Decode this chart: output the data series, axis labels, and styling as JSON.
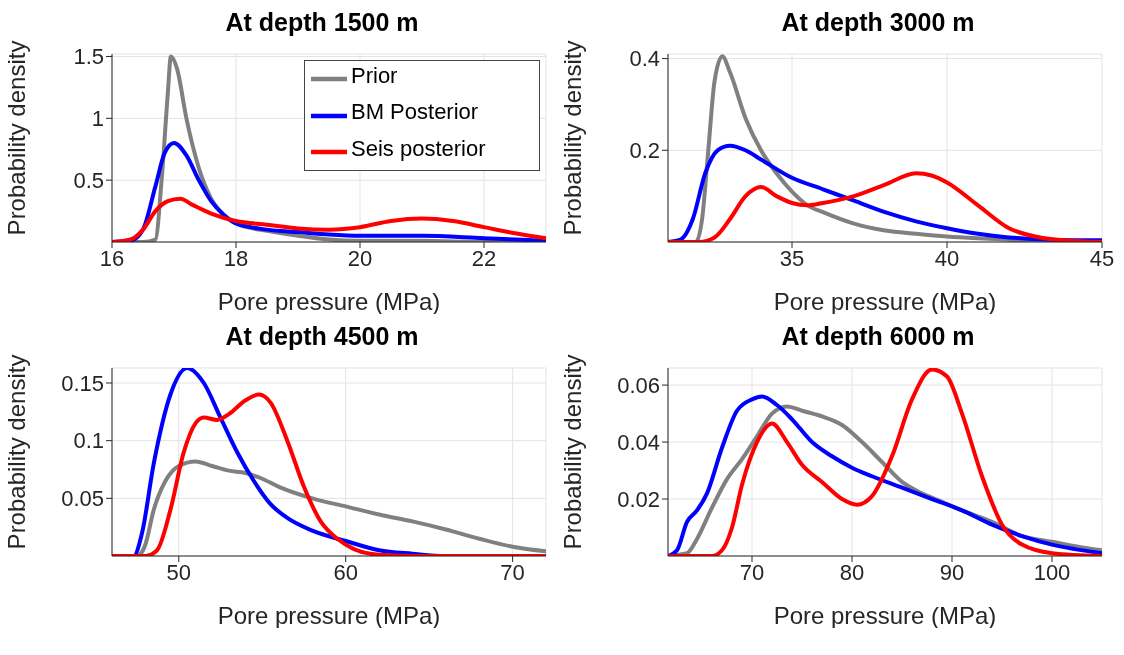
{
  "chart_data": [
    {
      "type": "line",
      "title": "At depth 1500 m",
      "xlabel": "Pore pressure (MPa)",
      "ylabel": "Probability density",
      "xlim": [
        16,
        23
      ],
      "xticks": [
        16,
        18,
        20,
        22
      ],
      "ylim": [
        0,
        1.52
      ],
      "yticks": [
        0.5,
        1,
        1.5
      ],
      "grid": true,
      "legend": "top right",
      "series": [
        {
          "name": "Prior",
          "color": "#808080",
          "x": [
            16,
            16.5,
            16.7,
            16.8,
            16.9,
            16.95,
            17.05,
            17.2,
            17.4,
            17.6,
            17.8,
            18,
            18.5,
            19,
            19.5,
            20,
            21,
            22,
            23
          ],
          "values": [
            0,
            0,
            0.02,
            0.5,
            1.2,
            1.5,
            1.4,
            1.0,
            0.6,
            0.35,
            0.22,
            0.15,
            0.09,
            0.05,
            0.02,
            0.01,
            0.01,
            0,
            0
          ]
        },
        {
          "name": "BM Posterior",
          "color": "#0000ff",
          "x": [
            16,
            16.3,
            16.5,
            16.7,
            16.85,
            17,
            17.2,
            17.4,
            17.6,
            17.8,
            18,
            18.5,
            19,
            19.5,
            20,
            21,
            22,
            23
          ],
          "values": [
            0,
            0.01,
            0.1,
            0.45,
            0.72,
            0.8,
            0.7,
            0.5,
            0.33,
            0.22,
            0.15,
            0.1,
            0.08,
            0.06,
            0.05,
            0.05,
            0.03,
            0.01
          ]
        },
        {
          "name": "Seis posterior",
          "color": "#ff0000",
          "x": [
            16,
            16.3,
            16.5,
            16.7,
            16.9,
            17.1,
            17.3,
            17.6,
            18,
            18.5,
            19,
            19.5,
            20,
            20.5,
            21,
            21.5,
            22,
            22.5,
            23
          ],
          "values": [
            0,
            0.02,
            0.1,
            0.25,
            0.33,
            0.35,
            0.3,
            0.23,
            0.17,
            0.14,
            0.11,
            0.1,
            0.12,
            0.17,
            0.19,
            0.17,
            0.12,
            0.07,
            0.03
          ]
        }
      ]
    },
    {
      "type": "line",
      "title": "At depth 3000 m",
      "xlabel": "Pore pressure (MPa)",
      "ylabel": "Probability density",
      "xlim": [
        31,
        45
      ],
      "xticks": [
        35,
        40,
        45
      ],
      "ylim": [
        0,
        0.41
      ],
      "yticks": [
        0.2,
        0.4
      ],
      "grid": true,
      "series": [
        {
          "color": "#808080",
          "x": [
            31,
            31.9,
            32.1,
            32.3,
            32.5,
            32.75,
            33,
            33.5,
            34,
            34.5,
            35,
            35.5,
            36,
            37,
            38,
            39,
            40,
            41,
            42,
            43,
            45
          ],
          "values": [
            0,
            0,
            0.05,
            0.2,
            0.35,
            0.405,
            0.37,
            0.27,
            0.2,
            0.15,
            0.11,
            0.08,
            0.065,
            0.04,
            0.025,
            0.018,
            0.012,
            0.008,
            0.005,
            0.002,
            0
          ]
        },
        {
          "color": "#0000ff",
          "x": [
            31,
            31.4,
            31.8,
            32.2,
            32.6,
            33,
            33.5,
            34,
            35,
            36,
            37,
            38,
            39,
            40,
            41,
            42,
            43,
            44,
            45
          ],
          "values": [
            0,
            0.005,
            0.05,
            0.15,
            0.2,
            0.21,
            0.2,
            0.18,
            0.14,
            0.115,
            0.09,
            0.065,
            0.045,
            0.03,
            0.018,
            0.01,
            0.006,
            0.004,
            0.004
          ]
        },
        {
          "color": "#ff0000",
          "x": [
            31,
            32,
            32.5,
            33,
            33.5,
            34,
            34.5,
            35,
            35.5,
            36,
            37,
            38,
            39,
            39.5,
            40,
            41,
            42,
            43,
            44,
            45
          ],
          "values": [
            0,
            0,
            0.01,
            0.05,
            0.1,
            0.12,
            0.1,
            0.085,
            0.08,
            0.085,
            0.1,
            0.125,
            0.15,
            0.145,
            0.13,
            0.08,
            0.03,
            0.01,
            0.003,
            0
          ]
        }
      ]
    },
    {
      "type": "line",
      "title": "At depth 4500 m",
      "xlabel": "Pore pressure (MPa)",
      "ylabel": "Probability density",
      "xlim": [
        46,
        72
      ],
      "xticks": [
        50,
        60,
        70
      ],
      "ylim": [
        0,
        0.163
      ],
      "yticks": [
        0.05,
        0.1,
        0.15
      ],
      "grid": true,
      "series": [
        {
          "color": "#808080",
          "x": [
            46,
            47.5,
            48,
            48.5,
            49.2,
            50,
            51,
            52,
            53,
            54,
            55,
            56,
            58,
            60,
            62,
            64,
            66,
            68,
            70,
            72
          ],
          "values": [
            0,
            0,
            0.01,
            0.04,
            0.065,
            0.078,
            0.082,
            0.078,
            0.074,
            0.072,
            0.067,
            0.06,
            0.05,
            0.043,
            0.036,
            0.03,
            0.023,
            0.015,
            0.008,
            0.004
          ]
        },
        {
          "color": "#0000ff",
          "x": [
            46,
            47.3,
            47.8,
            48.5,
            49.5,
            50.5,
            51.5,
            52.5,
            53.5,
            54.5,
            55.5,
            56.5,
            58,
            60,
            62,
            64,
            66,
            72
          ],
          "values": [
            0,
            0,
            0.02,
            0.08,
            0.14,
            0.163,
            0.15,
            0.12,
            0.09,
            0.065,
            0.045,
            0.033,
            0.022,
            0.013,
            0.005,
            0.002,
            0,
            0
          ]
        },
        {
          "color": "#ff0000",
          "x": [
            46,
            48,
            48.7,
            49.5,
            50.3,
            51,
            51.5,
            52.3,
            53,
            54,
            54.8,
            55.5,
            56.5,
            57.5,
            58.5,
            59.5,
            60.5,
            62,
            64,
            72
          ],
          "values": [
            0,
            0,
            0.005,
            0.04,
            0.09,
            0.115,
            0.12,
            0.118,
            0.123,
            0.135,
            0.14,
            0.133,
            0.1,
            0.06,
            0.03,
            0.015,
            0.006,
            0.001,
            0,
            0
          ]
        }
      ]
    },
    {
      "type": "line",
      "title": "At depth 6000 m",
      "xlabel": "Pore pressure (MPa)",
      "ylabel": "Probability density",
      "xlim": [
        61.6,
        105
      ],
      "xticks": [
        70,
        80,
        90,
        100
      ],
      "ylim": [
        0,
        0.066
      ],
      "yticks": [
        0.02,
        0.04,
        0.06
      ],
      "grid": true,
      "series": [
        {
          "color": "#808080",
          "x": [
            61.6,
            63.5,
            64.5,
            66,
            67.5,
            69,
            70.5,
            72,
            73.5,
            75,
            77,
            79,
            81,
            83,
            85,
            87,
            89,
            91,
            94,
            97,
            100,
            103,
            105
          ],
          "values": [
            0,
            0.001,
            0.006,
            0.017,
            0.027,
            0.034,
            0.042,
            0.05,
            0.0525,
            0.051,
            0.049,
            0.046,
            0.04,
            0.033,
            0.026,
            0.022,
            0.019,
            0.016,
            0.012,
            0.007,
            0.005,
            0.003,
            0.002
          ]
        },
        {
          "color": "#0000ff",
          "x": [
            61.6,
            62.5,
            63.5,
            64.5,
            65.5,
            67,
            68.5,
            70,
            71,
            72.5,
            74,
            76,
            78,
            80,
            82,
            85,
            88,
            91,
            94,
            97,
            100,
            105
          ],
          "values": [
            0,
            0.002,
            0.012,
            0.016,
            0.022,
            0.038,
            0.051,
            0.055,
            0.056,
            0.053,
            0.048,
            0.04,
            0.035,
            0.031,
            0.028,
            0.024,
            0.02,
            0.016,
            0.011,
            0.007,
            0.004,
            0.001
          ]
        },
        {
          "color": "#ff0000",
          "x": [
            61.6,
            66,
            67,
            68,
            69,
            70.5,
            72,
            73.5,
            75,
            77,
            79,
            80.5,
            82,
            84,
            86,
            88,
            89.5,
            91,
            93,
            95,
            97,
            100,
            105
          ],
          "values": [
            0,
            0,
            0.002,
            0.01,
            0.025,
            0.04,
            0.0465,
            0.04,
            0.032,
            0.026,
            0.02,
            0.018,
            0.021,
            0.035,
            0.055,
            0.0655,
            0.063,
            0.05,
            0.028,
            0.011,
            0.004,
            0.001,
            0
          ]
        }
      ]
    }
  ]
}
